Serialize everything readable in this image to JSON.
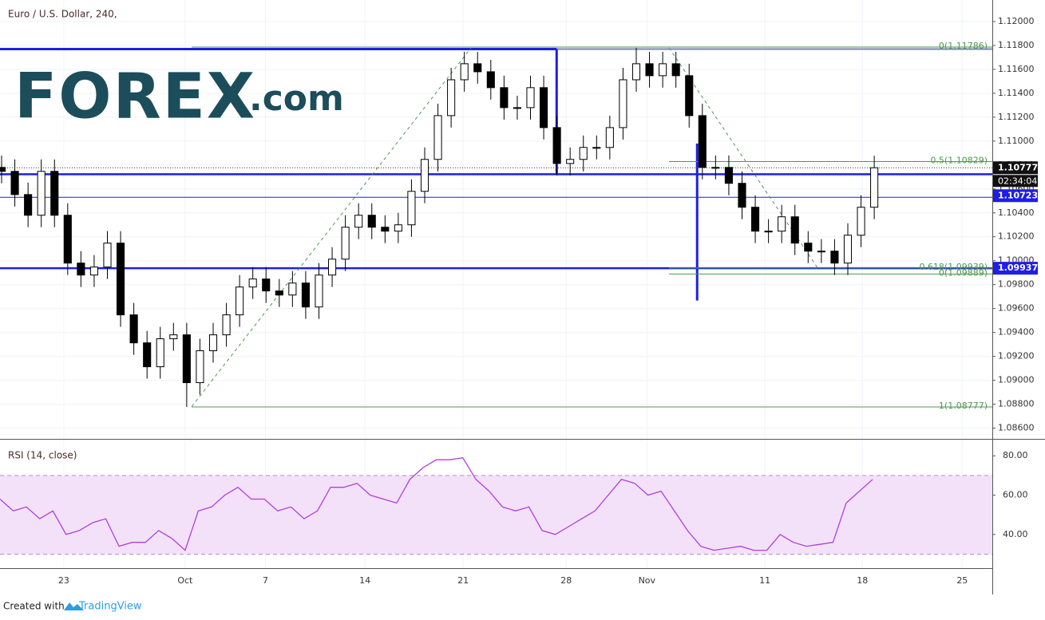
{
  "chart_data": [
    {
      "type": "candlestick",
      "title": "Euro / U.S. Dollar, 240,",
      "x": [
        0,
        4,
        8,
        12,
        16,
        20,
        24,
        28,
        32,
        36,
        40,
        44,
        48,
        52,
        56,
        60,
        64,
        68,
        72,
        76,
        80,
        84,
        88,
        92,
        96,
        100,
        104,
        108,
        112,
        116,
        120,
        124,
        128,
        132,
        136,
        140,
        144,
        148,
        152,
        156,
        160,
        164,
        168,
        172,
        176,
        180,
        184,
        188,
        192,
        196,
        200,
        204,
        208,
        212,
        216,
        220,
        224,
        228,
        232,
        236,
        240,
        244,
        248,
        252,
        256,
        260,
        264
      ],
      "open": [
        1.1078,
        1.10747,
        1.10553,
        1.1038,
        1.10747,
        1.1038,
        1.0998,
        1.0988,
        1.09947,
        1.10147,
        1.09547,
        1.09313,
        1.09113,
        1.09347,
        1.0938,
        1.0898,
        1.09247,
        1.0938,
        1.09547,
        1.0978,
        1.09847,
        1.09747,
        1.09713,
        1.09813,
        1.09613,
        1.0988,
        1.10013,
        1.1028,
        1.1038,
        1.1028,
        1.10247,
        1.103,
        1.1058,
        1.10847,
        1.11213,
        1.11513,
        1.11647,
        1.1158,
        1.11447,
        1.1128,
        1.1128,
        1.11447,
        1.11113,
        1.10813,
        1.10847,
        1.10947,
        1.10947,
        1.11113,
        1.11513,
        1.11647,
        1.11547,
        1.11647,
        1.11547,
        1.11213,
        1.1078,
        1.1078,
        1.10647,
        1.10447,
        1.10247,
        1.10247,
        1.10367,
        1.10147,
        1.1008,
        1.1008,
        1.0998,
        1.10213,
        1.10447
      ],
      "high": [
        1.1088,
        1.10847,
        1.10653,
        1.10847,
        1.10847,
        1.1048,
        1.1008,
        1.10047,
        1.10247,
        1.10247,
        1.09647,
        1.09413,
        1.09447,
        1.0948,
        1.0948,
        1.09347,
        1.0948,
        1.09647,
        1.0988,
        1.09947,
        1.09947,
        1.09847,
        1.09913,
        1.09913,
        1.0998,
        1.10113,
        1.1038,
        1.1048,
        1.1048,
        1.1038,
        1.104,
        1.1068,
        1.10947,
        1.11313,
        1.11613,
        1.11747,
        1.11747,
        1.1168,
        1.11547,
        1.1138,
        1.11547,
        1.11547,
        1.11213,
        1.10947,
        1.11047,
        1.11047,
        1.11213,
        1.11613,
        1.1178,
        1.11747,
        1.11747,
        1.11747,
        1.11647,
        1.11313,
        1.1088,
        1.1088,
        1.10747,
        1.10547,
        1.10347,
        1.10467,
        1.10467,
        1.10247,
        1.1018,
        1.1018,
        1.10313,
        1.10547,
        1.10877
      ],
      "low": [
        1.10647,
        1.10453,
        1.1028,
        1.1028,
        1.1028,
        1.0988,
        1.0978,
        1.0978,
        1.09847,
        1.09447,
        1.09213,
        1.09013,
        1.09013,
        1.09247,
        1.08777,
        1.0888,
        1.09147,
        1.0928,
        1.09447,
        1.0968,
        1.09647,
        1.09613,
        1.09613,
        1.09513,
        1.09513,
        1.0978,
        1.09913,
        1.1018,
        1.1018,
        1.10147,
        1.10147,
        1.102,
        1.1048,
        1.10747,
        1.11113,
        1.11413,
        1.1148,
        1.11347,
        1.1118,
        1.1118,
        1.1118,
        1.11013,
        1.10713,
        1.10713,
        1.10747,
        1.10847,
        1.10847,
        1.11013,
        1.11413,
        1.11447,
        1.11447,
        1.11447,
        1.11113,
        1.1068,
        1.1068,
        1.10547,
        1.10347,
        1.10147,
        1.10147,
        1.10147,
        1.10047,
        1.0998,
        1.0998,
        1.0988,
        1.0988,
        1.10113,
        1.10347
      ],
      "close": [
        1.10747,
        1.10553,
        1.1038,
        1.10747,
        1.1038,
        1.0998,
        1.0988,
        1.09947,
        1.10147,
        1.09547,
        1.09313,
        1.09113,
        1.09347,
        1.0938,
        1.0898,
        1.09247,
        1.0938,
        1.09547,
        1.0978,
        1.09847,
        1.09747,
        1.09713,
        1.09813,
        1.09613,
        1.0988,
        1.10013,
        1.1028,
        1.1038,
        1.1028,
        1.10247,
        1.103,
        1.1058,
        1.10847,
        1.11213,
        1.11513,
        1.11647,
        1.1158,
        1.11447,
        1.1128,
        1.1128,
        1.11447,
        1.11113,
        1.10813,
        1.10847,
        1.10947,
        1.10947,
        1.11113,
        1.11513,
        1.11647,
        1.11547,
        1.11647,
        1.11547,
        1.11213,
        1.1078,
        1.1078,
        1.10647,
        1.10447,
        1.10247,
        1.10247,
        1.10367,
        1.10147,
        1.1008,
        1.1008,
        1.0998,
        1.10213,
        1.10447,
        1.10777
      ],
      "up_color": "#ffffff",
      "down_color": "#000000",
      "outline_color": "#000000",
      "xlim": [
        0,
        300.2
      ],
      "xticks": [
        {
          "value": 19.3,
          "label": "23"
        },
        {
          "value": 56,
          "label": "Oct"
        },
        {
          "value": 80.3,
          "label": "7"
        },
        {
          "value": 110.4,
          "label": "14"
        },
        {
          "value": 140.1,
          "label": "21"
        },
        {
          "value": 171.3,
          "label": "28"
        },
        {
          "value": 195.7,
          "label": "Nov"
        },
        {
          "value": 231.4,
          "label": "11"
        },
        {
          "value": 260.9,
          "label": "18"
        },
        {
          "value": 291.1,
          "label": "25"
        }
      ],
      "ylim": [
        1.0851,
        1.1218
      ],
      "yticks": [
        {
          "value": 1.086,
          "label": "1.08600"
        },
        {
          "value": 1.088,
          "label": "1.08800"
        },
        {
          "value": 1.09,
          "label": "1.09000"
        },
        {
          "value": 1.092,
          "label": "1.09200"
        },
        {
          "value": 1.094,
          "label": "1.09400"
        },
        {
          "value": 1.096,
          "label": "1.09600"
        },
        {
          "value": 1.098,
          "label": "1.09800"
        },
        {
          "value": 1.1,
          "label": "1.10000"
        },
        {
          "value": 1.102,
          "label": "1.10200"
        },
        {
          "value": 1.104,
          "label": "1.10400"
        },
        {
          "value": 1.106,
          "label": "1.10600"
        },
        {
          "value": 1.108,
          "label": "1.10800"
        },
        {
          "value": 1.11,
          "label": "1.11000"
        },
        {
          "value": 1.112,
          "label": "1.11200"
        },
        {
          "value": 1.114,
          "label": "1.11400"
        },
        {
          "value": 1.116,
          "label": "1.11600"
        },
        {
          "value": 1.118,
          "label": "1.11800"
        },
        {
          "value": 1.12,
          "label": "1.12000"
        }
      ],
      "grid": true,
      "last_price": 1.10777,
      "countdown": "02:34:04",
      "level_color": "#1e1ee6",
      "levels": [
        1.10723,
        1.09937
      ],
      "thin_levels": [
        1.1053
      ],
      "top_level": {
        "value": 1.1177,
        "to": 168.4
      },
      "vlines": [
        {
          "x": 168.4,
          "from": 1.10723,
          "to": 1.1177
        },
        {
          "x": 210.9,
          "from": 1.09667,
          "to": 1.1098
        }
      ],
      "fib_color": "#4c9a4c",
      "fibs": [
        {
          "from": 58,
          "levels": [
            {
              "value": 1.11786,
              "label": "0(1.11786)"
            },
            {
              "value": 1.08777,
              "label": "1(1.08777)"
            }
          ]
        },
        {
          "from": 202.4,
          "levels": [
            {
              "value": 1.10829,
              "label": "0.5(1.10829)"
            },
            {
              "value": 1.09939,
              "label": "0.618(1.09939)"
            },
            {
              "value": 1.09889,
              "label": "0(1.09889)"
            }
          ]
        }
      ],
      "trendlines": [
        {
          "x": [
            58,
            142.5
          ],
          "y": [
            1.0878,
            1.1178
          ]
        },
        {
          "x": [
            202.4,
            247.6
          ],
          "y": [
            1.1178,
            1.0993
          ]
        }
      ]
    },
    {
      "type": "line",
      "title": "RSI (14, close)",
      "color": "#b040d8",
      "x": [
        0,
        4,
        8,
        12,
        16,
        20,
        24,
        28,
        32,
        36,
        40,
        44,
        48,
        52,
        56,
        60,
        64,
        68,
        72,
        76,
        80,
        84,
        88,
        92,
        96,
        100,
        104,
        108,
        112,
        116,
        120,
        124,
        128,
        132,
        136,
        140,
        144,
        148,
        152,
        156,
        160,
        164,
        168,
        172,
        176,
        180,
        184,
        188,
        192,
        196,
        200,
        204,
        208,
        212,
        216,
        220,
        224,
        228,
        232,
        236,
        240,
        244,
        248,
        252,
        256,
        260,
        264
      ],
      "values": [
        58,
        52,
        54,
        48,
        52,
        40,
        42,
        46,
        48,
        34,
        36,
        36,
        42,
        38,
        32,
        52,
        54,
        60,
        64,
        58,
        58,
        52,
        54,
        48,
        52,
        64,
        64,
        66,
        60,
        58,
        56,
        68,
        74,
        78,
        78,
        79,
        68,
        62,
        54,
        52,
        54,
        42,
        40,
        44,
        48,
        52,
        60,
        68,
        66,
        60,
        62,
        52,
        42,
        34,
        32,
        33,
        34,
        32,
        32,
        40,
        36,
        34,
        35,
        36,
        56,
        62,
        68
      ],
      "ylim": [
        22.9,
        87.8
      ],
      "yticks": [
        {
          "value": 40,
          "label": "40.00"
        },
        {
          "value": 60,
          "label": "60.00"
        },
        {
          "value": 80,
          "label": "80.00"
        }
      ],
      "bands": [
        30,
        70
      ],
      "band_color": "#f3e1fa"
    }
  ],
  "logo": {
    "brand": "FOREX",
    "suffix": ".com"
  },
  "footer": {
    "created": "Created with",
    "brand": "TradingView"
  }
}
